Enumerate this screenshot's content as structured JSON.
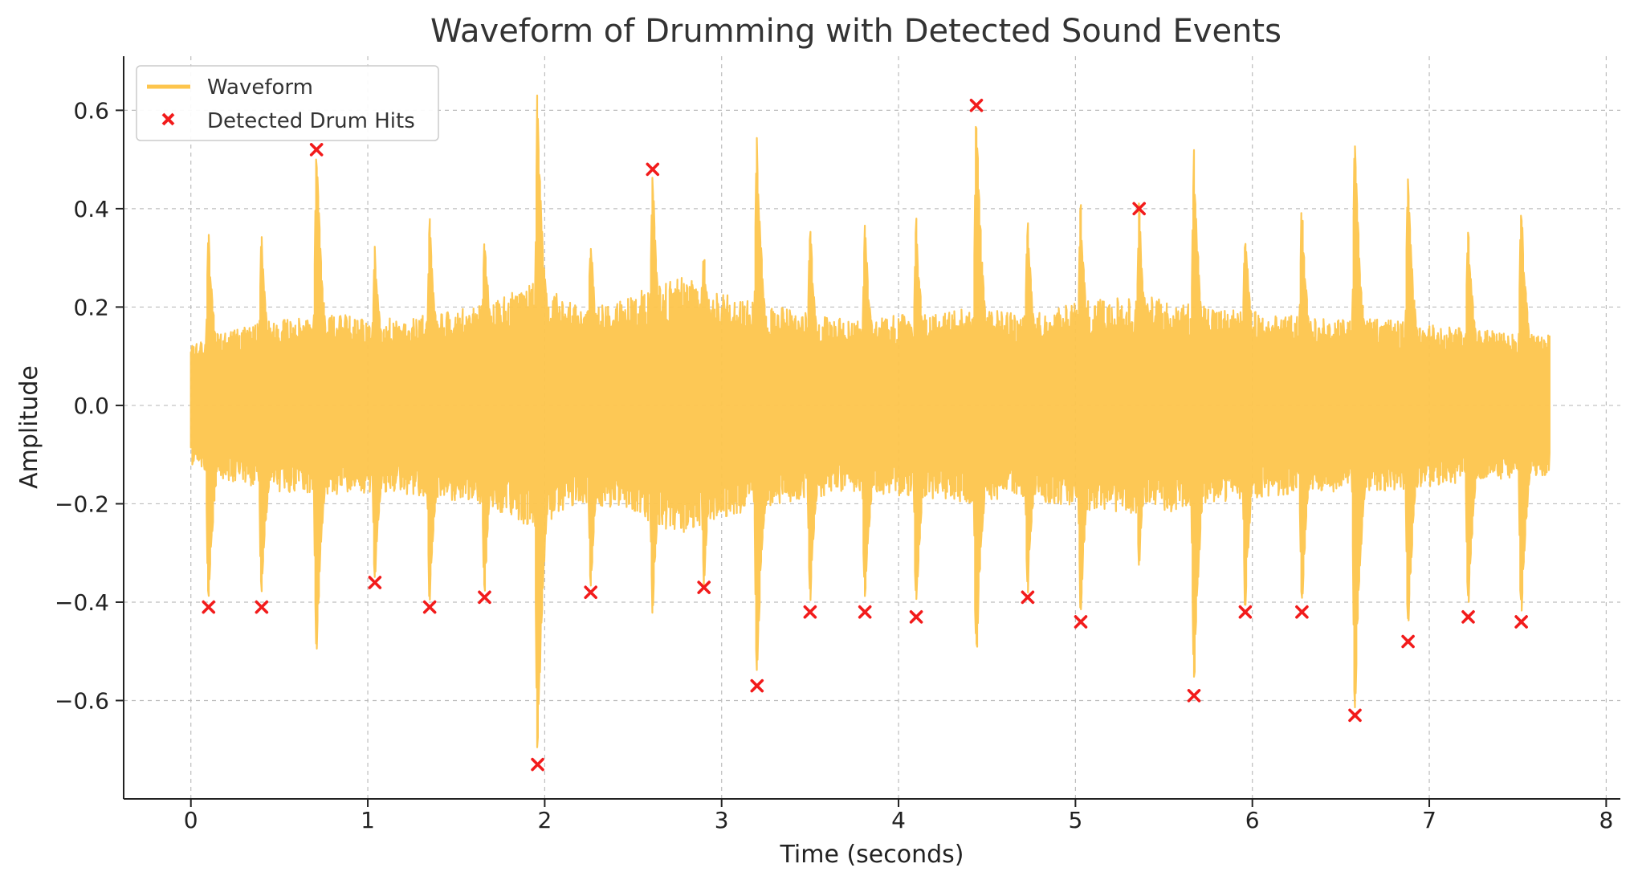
{
  "chart_data": {
    "type": "line",
    "title": "Waveform of Drumming with Detected Sound Events",
    "xlabel": "Time (seconds)",
    "ylabel": "Amplitude",
    "xlim": [
      -0.38,
      8.08
    ],
    "ylim": [
      -0.8,
      0.71
    ],
    "xticks": [
      0,
      1,
      2,
      3,
      4,
      5,
      6,
      7,
      8
    ],
    "xtick_labels": [
      "0",
      "1",
      "2",
      "3",
      "4",
      "5",
      "6",
      "7",
      "8"
    ],
    "yticks": [
      0.6,
      0.4,
      0.2,
      0.0,
      -0.2,
      -0.4,
      -0.6
    ],
    "ytick_labels": [
      "0.6",
      "0.4",
      "0.2",
      "0.0",
      "−0.2",
      "−0.4",
      "−0.6"
    ],
    "grid": true,
    "legend_position": "top-left",
    "colors": {
      "waveform": "#FDC54C",
      "hits": "#F21B1B",
      "grid": "#BDBDBD",
      "axes": "#222222"
    },
    "series": [
      {
        "name": "Waveform",
        "kind": "line",
        "x_range": [
          0.0,
          7.68
        ],
        "base_envelope": [
          [
            0.0,
            0.11
          ],
          [
            0.2,
            0.14
          ],
          [
            0.5,
            0.16
          ],
          [
            0.8,
            0.17
          ],
          [
            1.1,
            0.16
          ],
          [
            1.4,
            0.17
          ],
          [
            1.7,
            0.19
          ],
          [
            1.95,
            0.23
          ],
          [
            2.2,
            0.18
          ],
          [
            2.4,
            0.19
          ],
          [
            2.6,
            0.22
          ],
          [
            2.8,
            0.24
          ],
          [
            3.0,
            0.21
          ],
          [
            3.2,
            0.19
          ],
          [
            3.5,
            0.17
          ],
          [
            3.8,
            0.16
          ],
          [
            4.1,
            0.17
          ],
          [
            4.4,
            0.18
          ],
          [
            4.7,
            0.17
          ],
          [
            5.0,
            0.19
          ],
          [
            5.2,
            0.2
          ],
          [
            5.5,
            0.2
          ],
          [
            5.8,
            0.18
          ],
          [
            6.1,
            0.17
          ],
          [
            6.4,
            0.16
          ],
          [
            6.7,
            0.16
          ],
          [
            7.0,
            0.15
          ],
          [
            7.3,
            0.14
          ],
          [
            7.68,
            0.13
          ]
        ],
        "transient_peaks": [
          {
            "t": 0.1,
            "max": 0.35,
            "min": -0.41
          },
          {
            "t": 0.4,
            "max": 0.34,
            "min": -0.41
          },
          {
            "t": 0.71,
            "max": 0.53,
            "min": -0.52
          },
          {
            "t": 1.04,
            "max": 0.32,
            "min": -0.36
          },
          {
            "t": 1.35,
            "max": 0.38,
            "min": -0.41
          },
          {
            "t": 1.66,
            "max": 0.36,
            "min": -0.39
          },
          {
            "t": 1.96,
            "max": 0.64,
            "min": -0.73
          },
          {
            "t": 2.26,
            "max": 0.35,
            "min": -0.38
          },
          {
            "t": 2.61,
            "max": 0.49,
            "min": -0.43
          },
          {
            "t": 2.9,
            "max": 0.32,
            "min": -0.37
          },
          {
            "t": 3.2,
            "max": 0.54,
            "min": -0.57
          },
          {
            "t": 3.5,
            "max": 0.37,
            "min": -0.42
          },
          {
            "t": 3.81,
            "max": 0.37,
            "min": -0.42
          },
          {
            "t": 4.1,
            "max": 0.38,
            "min": -0.43
          },
          {
            "t": 4.44,
            "max": 0.61,
            "min": -0.54
          },
          {
            "t": 4.73,
            "max": 0.38,
            "min": -0.39
          },
          {
            "t": 5.03,
            "max": 0.41,
            "min": -0.44
          },
          {
            "t": 5.36,
            "max": 0.41,
            "min": -0.33
          },
          {
            "t": 5.67,
            "max": 0.51,
            "min": -0.59
          },
          {
            "t": 5.96,
            "max": 0.37,
            "min": -0.42
          },
          {
            "t": 6.28,
            "max": 0.41,
            "min": -0.42
          },
          {
            "t": 6.58,
            "max": 0.54,
            "min": -0.63
          },
          {
            "t": 6.88,
            "max": 0.47,
            "min": -0.48
          },
          {
            "t": 7.22,
            "max": 0.37,
            "min": -0.43
          },
          {
            "t": 7.52,
            "max": 0.41,
            "min": -0.44
          }
        ]
      },
      {
        "name": "Detected Drum Hits",
        "kind": "scatter",
        "points": [
          {
            "x": 0.1,
            "y": -0.41
          },
          {
            "x": 0.4,
            "y": -0.41
          },
          {
            "x": 0.71,
            "y": 0.52
          },
          {
            "x": 1.04,
            "y": -0.36
          },
          {
            "x": 1.35,
            "y": -0.41
          },
          {
            "x": 1.66,
            "y": -0.39
          },
          {
            "x": 1.96,
            "y": -0.73
          },
          {
            "x": 2.26,
            "y": -0.38
          },
          {
            "x": 2.61,
            "y": 0.48
          },
          {
            "x": 2.9,
            "y": -0.37
          },
          {
            "x": 3.2,
            "y": -0.57
          },
          {
            "x": 3.5,
            "y": -0.42
          },
          {
            "x": 3.81,
            "y": -0.42
          },
          {
            "x": 4.1,
            "y": -0.43
          },
          {
            "x": 4.44,
            "y": 0.61
          },
          {
            "x": 4.73,
            "y": -0.39
          },
          {
            "x": 5.03,
            "y": -0.44
          },
          {
            "x": 5.36,
            "y": 0.4
          },
          {
            "x": 5.67,
            "y": -0.59
          },
          {
            "x": 5.96,
            "y": -0.42
          },
          {
            "x": 6.28,
            "y": -0.42
          },
          {
            "x": 6.58,
            "y": -0.63
          },
          {
            "x": 6.88,
            "y": -0.48
          },
          {
            "x": 7.22,
            "y": -0.43
          },
          {
            "x": 7.52,
            "y": -0.44
          }
        ]
      }
    ]
  }
}
